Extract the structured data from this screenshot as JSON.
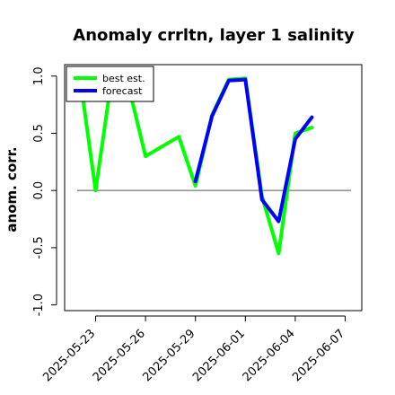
{
  "chart_data": {
    "type": "line",
    "title": "Anomaly crrltn, layer 1 salinity",
    "xlabel": "",
    "ylabel": "anom. corr.",
    "ylim": [
      -1.0,
      1.0
    ],
    "yticks": [
      -1.0,
      -0.5,
      0.0,
      0.5,
      1.0
    ],
    "ytick_labels": [
      "-1.0",
      "-0.5",
      "0.0",
      "0.5",
      "1.0"
    ],
    "xticks": [
      "2025-05-23",
      "2025-05-26",
      "2025-05-29",
      "2025-06-01",
      "2025-06-04",
      "2025-06-07"
    ],
    "highlight_tick": "2025-05-29",
    "highlight_color": "#008000",
    "reference_line": 0.0,
    "x_start": "2025-05-22",
    "x_end": "2025-06-08",
    "legend_position": "top-left",
    "series": [
      {
        "name": "best est.",
        "color": "#00ff00",
        "points": [
          {
            "x": "2025-05-22",
            "y": 1.05
          },
          {
            "x": "2025-05-23",
            "y": 0.0
          },
          {
            "x": "2025-05-24",
            "y": 1.02
          },
          {
            "x": "2025-05-25",
            "y": 0.9
          },
          {
            "x": "2025-05-26",
            "y": 0.3
          },
          {
            "x": "2025-05-28",
            "y": 0.47
          },
          {
            "x": "2025-05-29",
            "y": 0.04
          },
          {
            "x": "2025-05-30",
            "y": 0.66
          },
          {
            "x": "2025-05-31",
            "y": 0.97
          },
          {
            "x": "2025-06-01",
            "y": 0.98
          },
          {
            "x": "2025-06-02",
            "y": -0.05
          },
          {
            "x": "2025-06-03",
            "y": -0.55
          },
          {
            "x": "2025-06-04",
            "y": 0.5
          },
          {
            "x": "2025-06-05",
            "y": 0.55
          }
        ]
      },
      {
        "name": "forecast",
        "color": "#0000ff",
        "points": [
          {
            "x": "2025-05-29",
            "y": 0.08
          },
          {
            "x": "2025-05-30",
            "y": 0.65
          },
          {
            "x": "2025-05-31",
            "y": 0.96
          },
          {
            "x": "2025-06-01",
            "y": 0.97
          },
          {
            "x": "2025-06-02",
            "y": -0.08
          },
          {
            "x": "2025-06-03",
            "y": -0.27
          },
          {
            "x": "2025-06-04",
            "y": 0.45
          },
          {
            "x": "2025-06-05",
            "y": 0.64
          }
        ]
      }
    ]
  }
}
